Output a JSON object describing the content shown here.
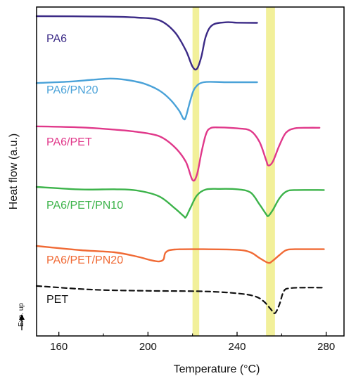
{
  "chart_data": {
    "type": "line",
    "title": "",
    "xlabel": "Temperature (°C)",
    "ylabel": "Heat flow (a.u.)",
    "exo_label": "Exo. up",
    "xlim": [
      150,
      288
    ],
    "xticks": [
      160,
      200,
      240,
      280
    ],
    "grid": false,
    "legend": "inline labels",
    "highlight_bands": [
      {
        "x_range": [
          220,
          223
        ],
        "color": "#f2f09a"
      },
      {
        "x_range": [
          253,
          257
        ],
        "color": "#f2f09a"
      }
    ],
    "series": [
      {
        "name": "PA6",
        "color": "#3b2a86",
        "dashed": false,
        "points": [
          [
            150,
            3.8
          ],
          [
            180,
            3.6
          ],
          [
            195,
            3.1
          ],
          [
            205,
            1.8
          ],
          [
            212,
            -4
          ],
          [
            217,
            -13
          ],
          [
            220,
            -21
          ],
          [
            222,
            -22
          ],
          [
            224,
            -16
          ],
          [
            226,
            -6
          ],
          [
            229,
            -0.5
          ],
          [
            235,
            0.8
          ],
          [
            240,
            0.6
          ],
          [
            249,
            0.5
          ]
        ]
      },
      {
        "name": "PA6/PN20",
        "color": "#4aa2d8",
        "dashed": false,
        "points": [
          [
            150,
            -0.4
          ],
          [
            165,
            0.3
          ],
          [
            175,
            1.2
          ],
          [
            183,
            1.8
          ],
          [
            190,
            1.2
          ],
          [
            198,
            -0.6
          ],
          [
            205,
            -4
          ],
          [
            210,
            -8.5
          ],
          [
            214,
            -14
          ],
          [
            216,
            -18
          ],
          [
            217,
            -17
          ],
          [
            219,
            -9
          ],
          [
            221,
            -3
          ],
          [
            225,
            0
          ],
          [
            235,
            0
          ],
          [
            249,
            0
          ]
        ]
      },
      {
        "name": "PA6/PET",
        "color": "#e0388a",
        "dashed": false,
        "points": [
          [
            150,
            2.4
          ],
          [
            170,
            1.8
          ],
          [
            185,
            0.6
          ],
          [
            195,
            -0.6
          ],
          [
            205,
            -3
          ],
          [
            212,
            -9
          ],
          [
            217,
            -17
          ],
          [
            220,
            -27
          ],
          [
            222,
            -24
          ],
          [
            224,
            -12
          ],
          [
            226,
            -2
          ],
          [
            228,
            1.4
          ],
          [
            232,
            1.8
          ],
          [
            240,
            1.3
          ],
          [
            246,
            0
          ],
          [
            250,
            -6
          ],
          [
            253,
            -16
          ],
          [
            254,
            -19
          ],
          [
            256,
            -17
          ],
          [
            259,
            -8
          ],
          [
            262,
            -1
          ],
          [
            266,
            1.3
          ],
          [
            272,
            1.6
          ],
          [
            277,
            1.6
          ]
        ]
      },
      {
        "name": "PA6/PET/PN10",
        "color": "#3cb34a",
        "dashed": false,
        "points": [
          [
            150,
            1.8
          ],
          [
            170,
            0.5
          ],
          [
            185,
            0.6
          ],
          [
            195,
            0
          ],
          [
            205,
            -3
          ],
          [
            212,
            -9
          ],
          [
            216,
            -13
          ],
          [
            217,
            -13.5
          ],
          [
            219,
            -9
          ],
          [
            222,
            -2.5
          ],
          [
            226,
            0.5
          ],
          [
            232,
            0.8
          ],
          [
            240,
            0.6
          ],
          [
            246,
            -1
          ],
          [
            250,
            -7
          ],
          [
            253,
            -12
          ],
          [
            254,
            -13
          ],
          [
            256,
            -10
          ],
          [
            259,
            -4
          ],
          [
            262,
            -0.6
          ],
          [
            266,
            0.2
          ],
          [
            279,
            0.2
          ]
        ]
      },
      {
        "name": "PA6/PET/PN20",
        "color": "#f06a35",
        "dashed": false,
        "points": [
          [
            150,
            1.5
          ],
          [
            170,
            -1.5
          ],
          [
            185,
            -3
          ],
          [
            195,
            -6
          ],
          [
            201,
            -8.5
          ],
          [
            205,
            -9.5
          ],
          [
            207,
            -8
          ],
          [
            208,
            -3
          ],
          [
            212,
            -1
          ],
          [
            225,
            -0.8
          ],
          [
            240,
            -1.2
          ],
          [
            246,
            -3
          ],
          [
            250,
            -7
          ],
          [
            254,
            -10.5
          ],
          [
            256,
            -9
          ],
          [
            259,
            -5
          ],
          [
            262,
            -1.5
          ],
          [
            266,
            -0.8
          ],
          [
            279,
            -0.8
          ]
        ]
      },
      {
        "name": "PET",
        "color": "#111111",
        "dashed": true,
        "points": [
          [
            150,
            1.5
          ],
          [
            175,
            -1
          ],
          [
            200,
            -1.8
          ],
          [
            225,
            -2.2
          ],
          [
            240,
            -3.5
          ],
          [
            248,
            -5.5
          ],
          [
            252,
            -9
          ],
          [
            255,
            -14
          ],
          [
            257,
            -17
          ],
          [
            259,
            -11
          ],
          [
            261,
            -2
          ],
          [
            264,
            0
          ],
          [
            272,
            0.4
          ],
          [
            279,
            0.3
          ]
        ]
      }
    ]
  }
}
